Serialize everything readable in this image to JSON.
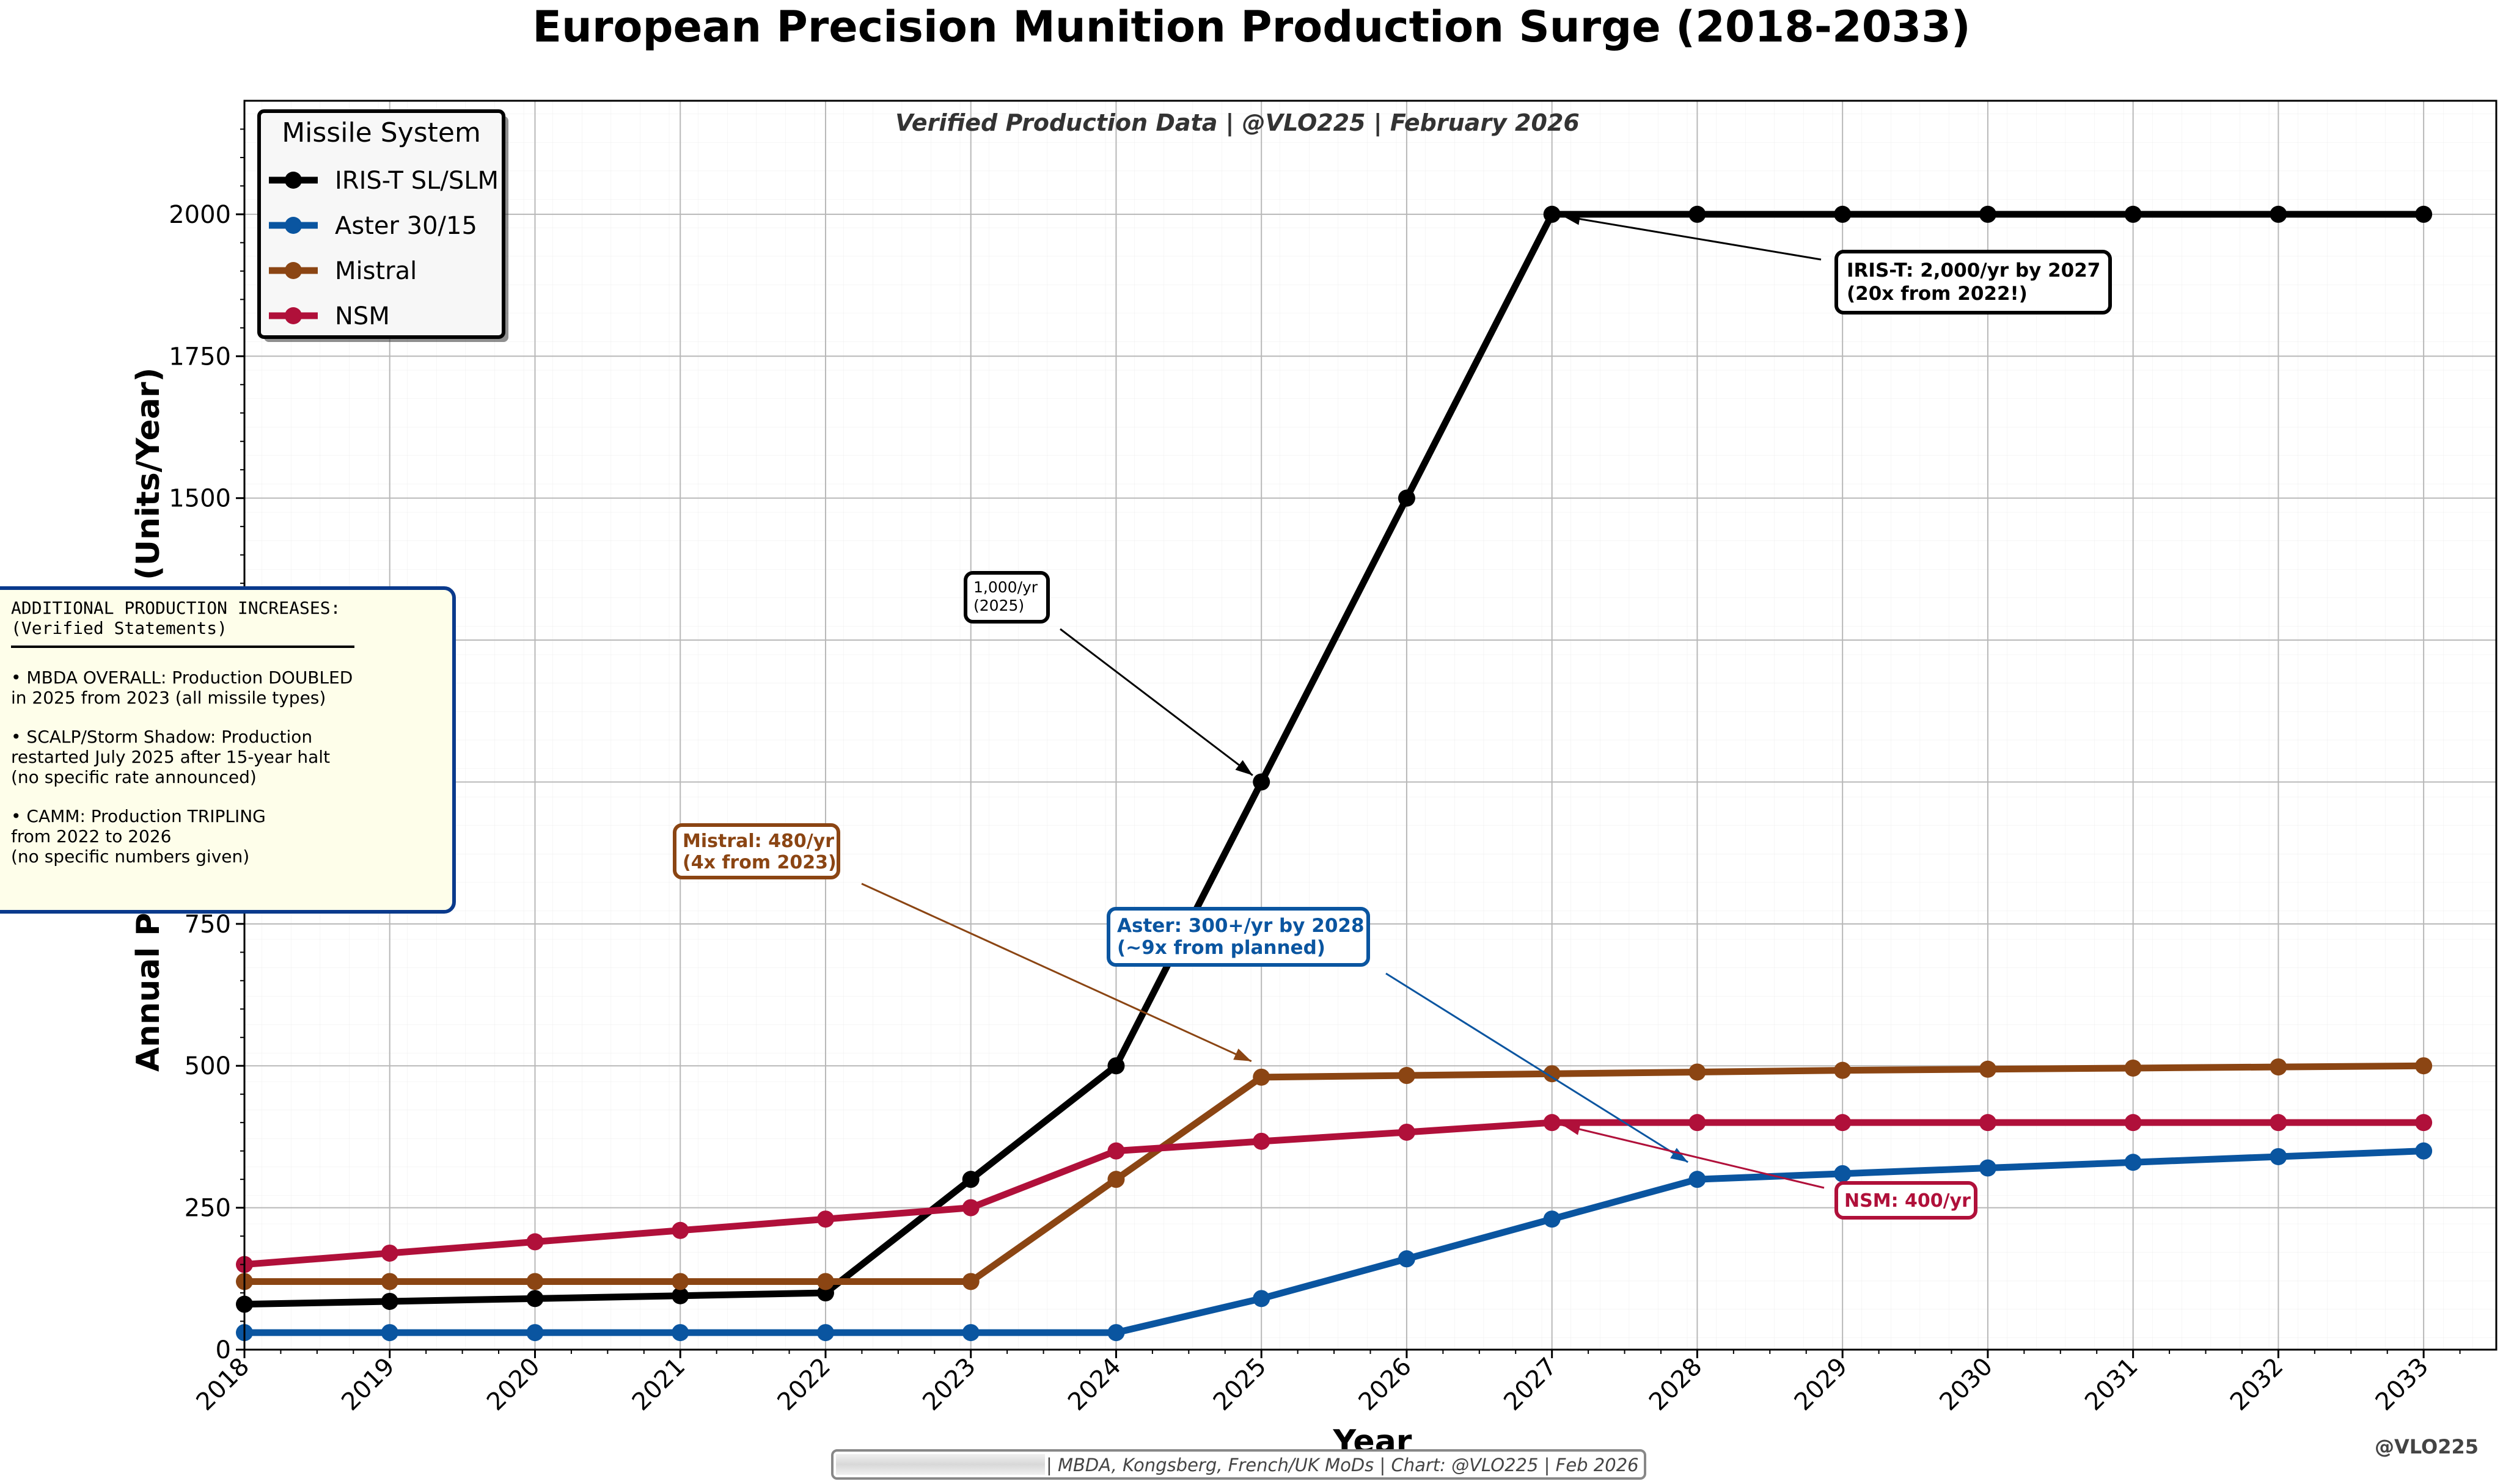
{
  "chart_data": {
    "type": "line",
    "title": "European Precision Munition Production Surge (2018-2033)",
    "subtitle": "Verified Production Data | @VLO225 | February 2026",
    "xlabel": "Year",
    "ylabel": "Annual Production Capacity (Units/Year)",
    "ylabel_visible": "Annual P",
    "ylabel_visible_top": "(Units/Year)",
    "xlim": [
      2018,
      2033.5
    ],
    "ylim": [
      0,
      2200
    ],
    "x": [
      2018,
      2019,
      2020,
      2021,
      2022,
      2023,
      2024,
      2025,
      2026,
      2027,
      2028,
      2029,
      2030,
      2031,
      2032,
      2033
    ],
    "x_tick_labels": [
      "2018",
      "2019",
      "2020",
      "2021",
      "2022",
      "2023",
      "2024",
      "2025",
      "2026",
      "2027",
      "2028",
      "2029",
      "2030",
      "2031",
      "2032",
      "2033"
    ],
    "y_ticks": [
      0,
      250,
      500,
      750,
      1000,
      1250,
      1500,
      1750,
      2000
    ],
    "y_tick_labels": [
      "0",
      "250",
      "500",
      "750",
      "",
      "",
      "1500",
      "1750",
      "2000"
    ],
    "grid": true,
    "legend": {
      "title": "Missile System",
      "placement": "top-left"
    },
    "series": [
      {
        "name": "IRIS-T SL/SLM",
        "color": "#000000",
        "values": [
          80,
          85,
          90,
          95,
          100,
          300,
          500,
          1000,
          1500,
          2000,
          2000,
          2000,
          2000,
          2000,
          2000,
          2000
        ]
      },
      {
        "name": "Aster 30/15",
        "color": "#0a55a0",
        "values": [
          30,
          30,
          30,
          30,
          30,
          30,
          30,
          90,
          160,
          230,
          300,
          310,
          320,
          330,
          340,
          350
        ]
      },
      {
        "name": "Mistral",
        "color": "#8b4513",
        "values": [
          120,
          120,
          120,
          120,
          120,
          120,
          300,
          480,
          483,
          486,
          489,
          492,
          494,
          496,
          498,
          500
        ]
      },
      {
        "name": "NSM",
        "color": "#b0103a",
        "values": [
          150,
          170,
          190,
          210,
          230,
          250,
          350,
          367,
          383,
          400,
          400,
          400,
          400,
          400,
          400,
          400
        ]
      }
    ],
    "annotations": [
      {
        "id": "iris",
        "lines": [
          "IRIS-T: 2,000/yr by 2027",
          "(20x from 2022!)"
        ],
        "target": [
          2027,
          2000
        ],
        "color": "#000000"
      },
      {
        "id": "iris2025",
        "lines": [
          "1,000/yr",
          "(2025)"
        ],
        "target": [
          2025,
          1000
        ],
        "color": "#000000"
      },
      {
        "id": "mistral",
        "lines": [
          "Mistral: 480/yr",
          "(4x from 2023)"
        ],
        "target": [
          2025,
          500
        ],
        "color": "#8b4513"
      },
      {
        "id": "aster",
        "lines": [
          "Aster: 300+/yr by 2028",
          "(~9x from planned)"
        ],
        "target": [
          2028,
          320
        ],
        "color": "#0a55a0"
      },
      {
        "id": "nsm",
        "lines": [
          "NSM: 400/yr"
        ],
        "target": [
          2027,
          400
        ],
        "color": "#b0103a"
      }
    ]
  },
  "info_box": {
    "title_lines": [
      "ADDITIONAL PRODUCTION INCREASES:",
      "(Verified Statements)"
    ],
    "items": [
      [
        "• MBDA OVERALL: Production DOUBLED",
        "  in 2025 from 2023 (all missile types)"
      ],
      [
        "• SCALP/Storm Shadow: Production",
        "  restarted July 2025 after 15-year halt",
        "  (no specific rate announced)"
      ],
      [
        "• CAMM: Production TRIPLING",
        "  from 2022 to 2026",
        "  (no specific numbers given)"
      ]
    ]
  },
  "footer": {
    "sources": "| MBDA, Kongsberg, French/UK MoDs | Chart: @VLO225 | Feb 2026",
    "watermark": "@VLO225"
  }
}
